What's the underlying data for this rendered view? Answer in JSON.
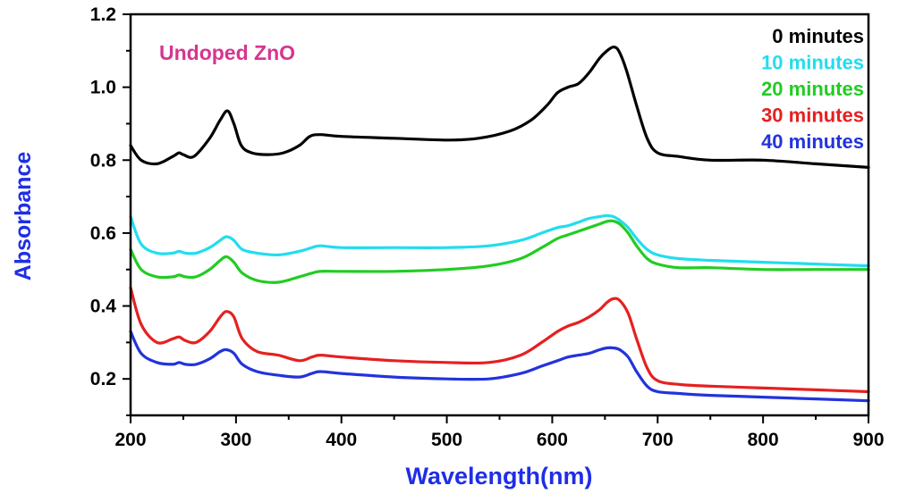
{
  "chart_data": {
    "type": "line",
    "xlabel": "Wavelength(nm)",
    "ylabel": "Absorbance",
    "xlim": [
      200,
      900
    ],
    "ylim": [
      0.1,
      1.2
    ],
    "xticks": [
      200,
      300,
      400,
      500,
      600,
      700,
      800,
      900
    ],
    "yticks": [
      0.2,
      0.4,
      0.6,
      0.8,
      1.0,
      1.2
    ],
    "ytick_labels": [
      "0.2",
      "0.4",
      "0.6",
      "0.8",
      "1.0",
      "1.2"
    ],
    "grid": false,
    "legend_position": "top-right",
    "annotation": {
      "text": "Undoped ZnO",
      "color": "#d6358f"
    },
    "axis_title_color": "#1f2ee6",
    "series": [
      {
        "name": "0 minutes",
        "color": "#000000",
        "x": [
          200,
          210,
          225,
          240,
          246,
          250,
          260,
          275,
          285,
          292,
          298,
          305,
          315,
          330,
          345,
          360,
          370,
          380,
          400,
          450,
          500,
          530,
          560,
          580,
          595,
          605,
          615,
          625,
          635,
          645,
          652,
          658,
          663,
          670,
          680,
          690,
          700,
          720,
          750,
          800,
          850,
          900
        ],
        "y": [
          0.84,
          0.8,
          0.79,
          0.81,
          0.82,
          0.815,
          0.81,
          0.86,
          0.91,
          0.935,
          0.9,
          0.84,
          0.82,
          0.815,
          0.82,
          0.84,
          0.865,
          0.87,
          0.865,
          0.86,
          0.855,
          0.86,
          0.88,
          0.91,
          0.95,
          0.985,
          1.0,
          1.01,
          1.04,
          1.08,
          1.1,
          1.11,
          1.1,
          1.05,
          0.95,
          0.86,
          0.82,
          0.81,
          0.8,
          0.8,
          0.79,
          0.78
        ]
      },
      {
        "name": "10 minutes",
        "color": "#22ddee",
        "x": [
          200,
          210,
          225,
          240,
          246,
          252,
          262,
          275,
          285,
          291,
          298,
          306,
          320,
          340,
          360,
          372,
          380,
          400,
          450,
          500,
          540,
          570,
          590,
          605,
          615,
          625,
          635,
          645,
          652,
          658,
          664,
          672,
          680,
          690,
          700,
          720,
          750,
          800,
          850,
          900
        ],
        "y": [
          0.645,
          0.57,
          0.545,
          0.545,
          0.55,
          0.545,
          0.545,
          0.56,
          0.58,
          0.59,
          0.58,
          0.555,
          0.545,
          0.54,
          0.55,
          0.56,
          0.565,
          0.56,
          0.56,
          0.56,
          0.565,
          0.58,
          0.6,
          0.615,
          0.62,
          0.63,
          0.64,
          0.645,
          0.648,
          0.645,
          0.635,
          0.615,
          0.585,
          0.555,
          0.54,
          0.53,
          0.525,
          0.52,
          0.515,
          0.51
        ]
      },
      {
        "name": "20 minutes",
        "color": "#22cc22",
        "x": [
          200,
          210,
          225,
          240,
          246,
          252,
          262,
          275,
          285,
          291,
          298,
          306,
          320,
          340,
          360,
          372,
          380,
          400,
          450,
          500,
          540,
          570,
          590,
          605,
          615,
          625,
          635,
          645,
          652,
          658,
          664,
          672,
          680,
          690,
          700,
          720,
          750,
          800,
          850,
          900
        ],
        "y": [
          0.555,
          0.5,
          0.48,
          0.48,
          0.485,
          0.48,
          0.48,
          0.5,
          0.525,
          0.535,
          0.52,
          0.49,
          0.47,
          0.465,
          0.48,
          0.49,
          0.495,
          0.495,
          0.495,
          0.5,
          0.51,
          0.53,
          0.56,
          0.585,
          0.595,
          0.605,
          0.615,
          0.625,
          0.632,
          0.633,
          0.625,
          0.6,
          0.565,
          0.53,
          0.515,
          0.505,
          0.505,
          0.5,
          0.5,
          0.5
        ]
      },
      {
        "name": "30 minutes",
        "color": "#e62020",
        "x": [
          200,
          210,
          225,
          240,
          246,
          252,
          262,
          275,
          285,
          291,
          298,
          306,
          320,
          340,
          360,
          372,
          380,
          400,
          450,
          500,
          540,
          570,
          590,
          605,
          615,
          625,
          635,
          645,
          652,
          658,
          664,
          672,
          680,
          690,
          700,
          720,
          750,
          800,
          850,
          900
        ],
        "y": [
          0.45,
          0.35,
          0.3,
          0.31,
          0.315,
          0.305,
          0.3,
          0.33,
          0.37,
          0.385,
          0.37,
          0.31,
          0.275,
          0.265,
          0.25,
          0.26,
          0.265,
          0.26,
          0.25,
          0.245,
          0.245,
          0.265,
          0.3,
          0.33,
          0.345,
          0.355,
          0.37,
          0.39,
          0.41,
          0.42,
          0.415,
          0.38,
          0.31,
          0.23,
          0.195,
          0.185,
          0.18,
          0.175,
          0.17,
          0.165
        ]
      },
      {
        "name": "40 minutes",
        "color": "#2233dd",
        "x": [
          200,
          210,
          225,
          240,
          246,
          252,
          262,
          275,
          285,
          291,
          298,
          306,
          320,
          340,
          360,
          372,
          380,
          400,
          450,
          500,
          540,
          570,
          590,
          605,
          615,
          625,
          635,
          645,
          652,
          658,
          664,
          672,
          680,
          690,
          700,
          720,
          750,
          800,
          850,
          900
        ],
        "y": [
          0.33,
          0.27,
          0.245,
          0.24,
          0.245,
          0.24,
          0.24,
          0.255,
          0.275,
          0.28,
          0.27,
          0.24,
          0.22,
          0.21,
          0.205,
          0.215,
          0.22,
          0.215,
          0.205,
          0.2,
          0.2,
          0.215,
          0.235,
          0.25,
          0.26,
          0.265,
          0.27,
          0.28,
          0.285,
          0.285,
          0.28,
          0.26,
          0.22,
          0.18,
          0.165,
          0.16,
          0.155,
          0.15,
          0.145,
          0.14
        ]
      }
    ]
  }
}
